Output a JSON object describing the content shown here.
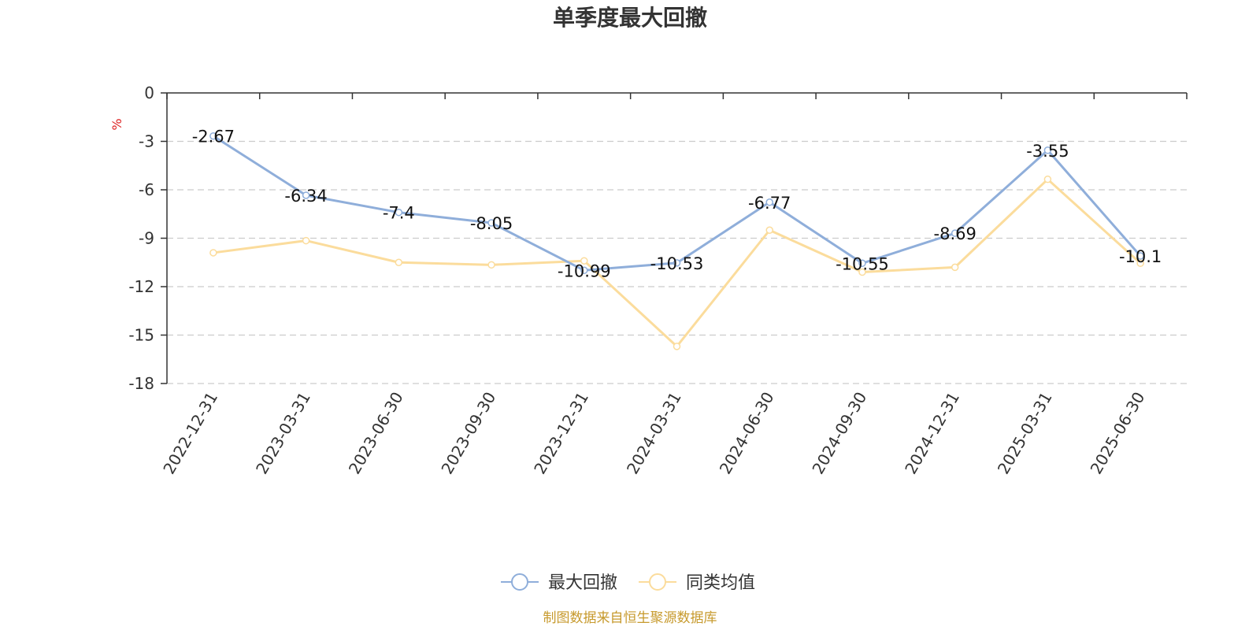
{
  "chart_data": {
    "type": "line",
    "title": "单季度最大回撤",
    "ylabel": "%",
    "categories": [
      "2022-12-31",
      "2023-03-31",
      "2023-06-30",
      "2023-09-30",
      "2023-12-31",
      "2024-03-31",
      "2024-06-30",
      "2024-09-30",
      "2024-12-31",
      "2025-03-31",
      "2025-06-30"
    ],
    "series": [
      {
        "name": "最大回撤",
        "values": [
          -2.67,
          -6.34,
          -7.4,
          -8.05,
          -10.99,
          -10.53,
          -6.77,
          -10.55,
          -8.69,
          -3.55,
          -10.1
        ],
        "color": "#8FAEDA",
        "labels": [
          "-2.67",
          "-6.34",
          "-7.4",
          "-8.05",
          "-10.99",
          "-10.53",
          "-6.77",
          "-10.55",
          "-8.69",
          "-3.55",
          "-10.1"
        ]
      },
      {
        "name": "同类均值",
        "values": [
          -9.9,
          -9.15,
          -10.5,
          -10.65,
          -10.4,
          -15.7,
          -8.5,
          -11.1,
          -10.8,
          -5.35,
          -10.55
        ],
        "color": "#FBDC9C"
      }
    ],
    "ylim": [
      -18,
      0
    ],
    "yticks": [
      "0",
      "-3",
      "-6",
      "-9",
      "-12",
      "-15",
      "-18"
    ],
    "grid": true,
    "legend_position": "bottom-center"
  },
  "colors": {
    "text": "#333333",
    "unit": "#DD2222",
    "source": "#C79A2D",
    "grid": "#CCCCCC"
  },
  "source_text": "制图数据来自恒生聚源数据库"
}
